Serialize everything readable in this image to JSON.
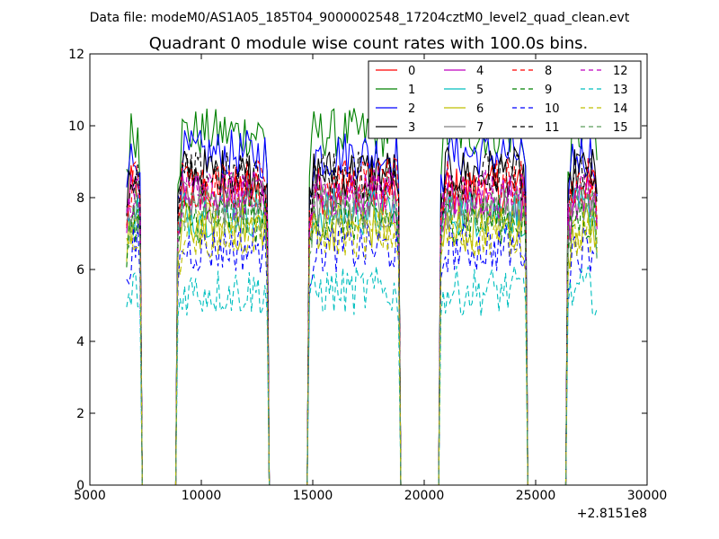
{
  "chart_data": {
    "type": "line",
    "suptitle": "Data file: modeM0/AS1A05_185T04_9000002548_17204cztM0_level2_quad_clean.evt",
    "title": "Quadrant 0 module wise count rates with 100.0s bins.",
    "xlabel": "",
    "ylabel": "",
    "x_offset_label": "+2.8151e8",
    "xlim": [
      5000,
      30000
    ],
    "ylim": [
      0,
      12
    ],
    "x_ticks": [
      5000,
      10000,
      15000,
      20000,
      25000,
      30000
    ],
    "y_ticks": [
      0,
      2,
      4,
      6,
      8,
      10,
      12
    ],
    "grid": false,
    "legend_position": "top-right",
    "legend_columns": 4,
    "x_step": 100,
    "segments": [
      {
        "start": 6650,
        "end": 7250
      },
      {
        "start": 8950,
        "end": 12950
      },
      {
        "start": 14850,
        "end": 18850
      },
      {
        "start": 20750,
        "end": 24550
      },
      {
        "start": 26450,
        "end": 27750
      }
    ],
    "series": [
      {
        "name": "0",
        "color": "#ff0000",
        "dash": "solid",
        "level": 8.2
      },
      {
        "name": "1",
        "color": "#008000",
        "dash": "solid",
        "level": 9.8
      },
      {
        "name": "2",
        "color": "#0000ff",
        "dash": "solid",
        "level": 9.2
      },
      {
        "name": "3",
        "color": "#000000",
        "dash": "solid",
        "level": 8.7
      },
      {
        "name": "4",
        "color": "#bf00bf",
        "dash": "solid",
        "level": 8.0
      },
      {
        "name": "5",
        "color": "#00bfbf",
        "dash": "solid",
        "level": 7.6
      },
      {
        "name": "6",
        "color": "#bfbf00",
        "dash": "solid",
        "level": 7.2
      },
      {
        "name": "7",
        "color": "#808080",
        "dash": "solid",
        "level": 7.8
      },
      {
        "name": "8",
        "color": "#ff0000",
        "dash": "dashed",
        "level": 8.4
      },
      {
        "name": "9",
        "color": "#008000",
        "dash": "dashed",
        "level": 7.4
      },
      {
        "name": "10",
        "color": "#0000ff",
        "dash": "dashed",
        "level": 6.6
      },
      {
        "name": "11",
        "color": "#000000",
        "dash": "dashed",
        "level": 8.6
      },
      {
        "name": "12",
        "color": "#bf00bf",
        "dash": "dashed",
        "level": 8.1
      },
      {
        "name": "13",
        "color": "#00bfbf",
        "dash": "dashed",
        "level": 5.4
      },
      {
        "name": "14",
        "color": "#bfbf00",
        "dash": "dashed",
        "level": 7.0
      },
      {
        "name": "15",
        "color": "#5a9e5a",
        "dash": "dashed",
        "level": 7.6
      }
    ]
  }
}
